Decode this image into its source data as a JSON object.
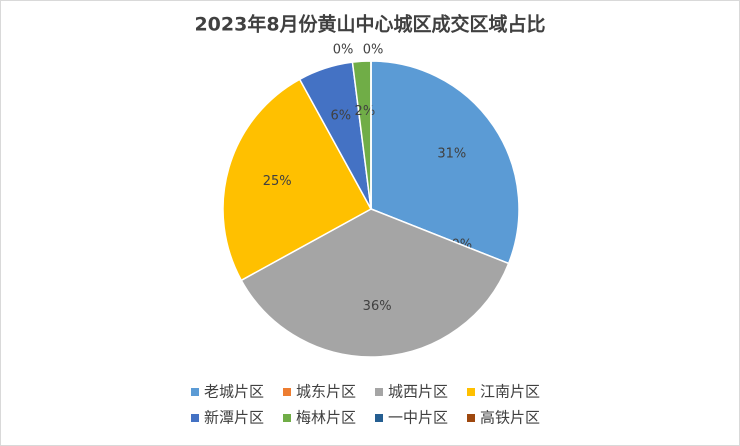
{
  "chart_data": {
    "type": "pie",
    "title": "2023年8月份黄山中心城区成交区域占比",
    "categories": [
      "老城片区",
      "城东片区",
      "城西片区",
      "江南片区",
      "新潭片区",
      "梅林片区",
      "一中片区",
      "高铁片区"
    ],
    "values": [
      31,
      0,
      36,
      25,
      6,
      2,
      0,
      0
    ],
    "value_labels": [
      "31%",
      "0%",
      "36%",
      "25%",
      "6%",
      "2%",
      "0%",
      "0%"
    ],
    "colors": [
      "#5b9bd5",
      "#ed7d31",
      "#a5a5a5",
      "#ffc000",
      "#4472c4",
      "#70ad47",
      "#255e91",
      "#9e480e"
    ],
    "legend": "bottom"
  }
}
